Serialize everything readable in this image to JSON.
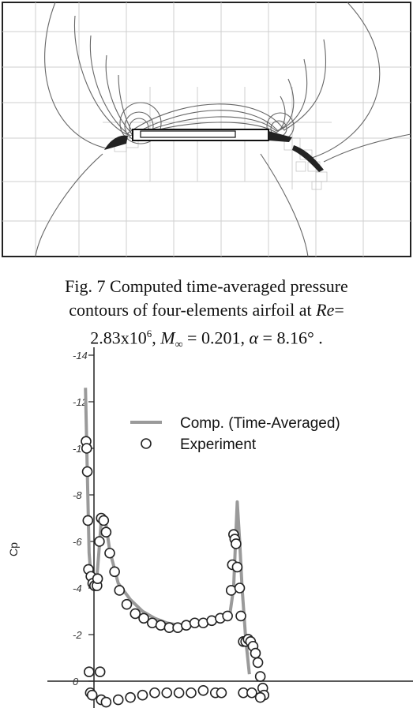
{
  "figure7": {
    "caption_line1": "Fig. 7  Computed time-averaged pressure",
    "caption_line2_pre": "contours of four-elements airfoil at ",
    "caption_re": "Re",
    "caption_line2_post": "=",
    "caption_line3_re_value": "2.83x10",
    "caption_line3_re_exp": "6",
    "caption_mach": "M",
    "caption_mach_sub": "∞",
    "caption_mach_value": " = 0.201, ",
    "caption_alpha": "α",
    "caption_alpha_value": " = 8.16° ."
  },
  "chart_data": {
    "type": "line",
    "ylabel": "Cp",
    "ylim": [
      0,
      14
    ],
    "y_ticks": [
      "-14",
      "-12",
      "-10",
      "-8",
      "-6",
      "-4",
      "-2",
      "0"
    ],
    "legend_placement": "top-right",
    "series": [
      {
        "name": "Comp. (Time-Averaged)",
        "style": "line",
        "color": "#9a9a9a",
        "values": [
          [
            -0.97,
            12.6
          ],
          [
            -0.955,
            9.0
          ],
          [
            -0.94,
            5.5
          ],
          [
            -0.92,
            4.2
          ],
          [
            -0.9,
            4.1
          ],
          [
            -0.88,
            4.2
          ],
          [
            -0.86,
            5.5
          ],
          [
            -0.84,
            6.9
          ],
          [
            -0.82,
            7.1
          ],
          [
            -0.8,
            6.7
          ],
          [
            -0.77,
            5.6
          ],
          [
            -0.7,
            4.2
          ],
          [
            -0.6,
            3.5
          ],
          [
            -0.5,
            3.0
          ],
          [
            -0.4,
            2.7
          ],
          [
            -0.3,
            2.5
          ],
          [
            -0.2,
            2.4
          ],
          [
            -0.1,
            2.4
          ],
          [
            0.0,
            2.5
          ],
          [
            0.1,
            2.6
          ],
          [
            0.2,
            2.8
          ],
          [
            0.22,
            2.9
          ],
          [
            0.25,
            4.0
          ],
          [
            0.27,
            6.5
          ],
          [
            0.28,
            7.7
          ],
          [
            0.3,
            6.0
          ],
          [
            0.32,
            4.0
          ],
          [
            0.35,
            1.8
          ],
          [
            0.38,
            0.3
          ]
        ]
      },
      {
        "name": "Experiment",
        "style": "circle",
        "color": "#222222",
        "values": [
          [
            -0.965,
            10.3
          ],
          [
            -0.96,
            10.0
          ],
          [
            -0.955,
            9.0
          ],
          [
            -0.95,
            6.9
          ],
          [
            -0.945,
            4.8
          ],
          [
            -0.94,
            0.4
          ],
          [
            -0.93,
            -0.5
          ],
          [
            -0.915,
            -0.6
          ],
          [
            -0.925,
            4.5
          ],
          [
            -0.91,
            4.2
          ],
          [
            -0.895,
            4.1
          ],
          [
            -0.875,
            4.1
          ],
          [
            -0.87,
            4.4
          ],
          [
            -0.855,
            6.0
          ],
          [
            -0.84,
            7.0
          ],
          [
            -0.82,
            6.9
          ],
          [
            -0.8,
            6.4
          ],
          [
            -0.77,
            5.5
          ],
          [
            -0.73,
            4.7
          ],
          [
            -0.69,
            3.9
          ],
          [
            -0.63,
            3.3
          ],
          [
            -0.56,
            2.9
          ],
          [
            -0.49,
            2.7
          ],
          [
            -0.42,
            2.5
          ],
          [
            -0.35,
            2.4
          ],
          [
            -0.28,
            2.3
          ],
          [
            -0.21,
            2.3
          ],
          [
            -0.14,
            2.4
          ],
          [
            -0.07,
            2.5
          ],
          [
            0.0,
            2.5
          ],
          [
            0.07,
            2.6
          ],
          [
            0.14,
            2.7
          ],
          [
            0.2,
            2.8
          ],
          [
            0.23,
            3.9
          ],
          [
            0.24,
            5.0
          ],
          [
            0.25,
            6.3
          ],
          [
            0.26,
            6.1
          ],
          [
            0.27,
            5.9
          ],
          [
            0.28,
            4.9
          ],
          [
            0.3,
            4.0
          ],
          [
            0.31,
            2.8
          ],
          [
            0.33,
            1.7
          ],
          [
            0.35,
            1.7
          ],
          [
            0.37,
            1.8
          ],
          [
            0.39,
            1.7
          ],
          [
            0.41,
            1.5
          ],
          [
            0.43,
            1.2
          ],
          [
            0.45,
            0.8
          ],
          [
            0.47,
            0.2
          ],
          [
            0.49,
            -0.3
          ],
          [
            0.5,
            -0.6
          ],
          [
            -0.85,
            0.4
          ],
          [
            -0.84,
            -0.8
          ],
          [
            -0.8,
            -0.9
          ],
          [
            -0.7,
            -0.8
          ],
          [
            -0.6,
            -0.7
          ],
          [
            -0.5,
            -0.6
          ],
          [
            -0.4,
            -0.5
          ],
          [
            -0.3,
            -0.5
          ],
          [
            -0.2,
            -0.5
          ],
          [
            -0.1,
            -0.5
          ],
          [
            0.0,
            -0.4
          ],
          [
            0.1,
            -0.5
          ],
          [
            0.15,
            -0.5
          ],
          [
            0.33,
            -0.5
          ],
          [
            0.4,
            -0.5
          ],
          [
            0.47,
            -0.7
          ]
        ]
      }
    ]
  }
}
